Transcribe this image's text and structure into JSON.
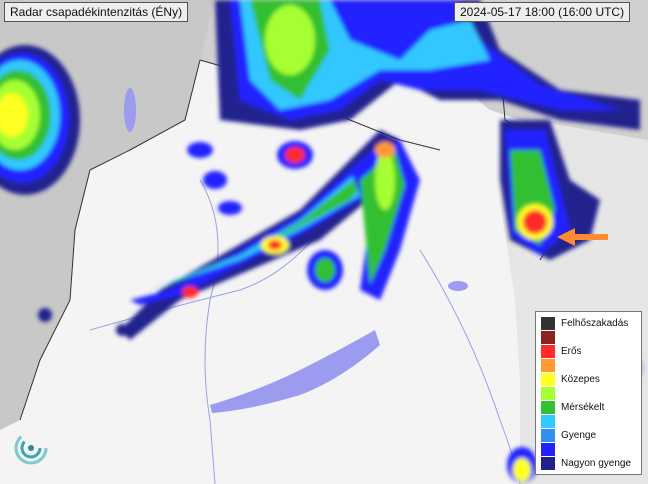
{
  "header": {
    "title": "Radar csapadékintenzitás (ÉNy)",
    "timestamp": "2024-05-17 18:00 (16:00 UTC)"
  },
  "legend": {
    "items": [
      {
        "label": "Felhőszakadás",
        "color": "#333333"
      },
      {
        "label": "",
        "color": "#8c2323"
      },
      {
        "label": "Erős",
        "color": "#ff2a2a"
      },
      {
        "label": "",
        "color": "#ff9a30"
      },
      {
        "label": "Közepes",
        "color": "#ffff22"
      },
      {
        "label": "",
        "color": "#a6ff33"
      },
      {
        "label": "Mérsékelt",
        "color": "#33c033"
      },
      {
        "label": "",
        "color": "#33c8ff"
      },
      {
        "label": "Gyenge",
        "color": "#3090f0"
      },
      {
        "label": "",
        "color": "#2222ff"
      },
      {
        "label": "Nagyon gyenge",
        "color": "#22228f"
      }
    ]
  },
  "annotation": {
    "arrow_color": "#ff8a30"
  },
  "logo": {
    "icon": "swirl-logo-icon"
  }
}
